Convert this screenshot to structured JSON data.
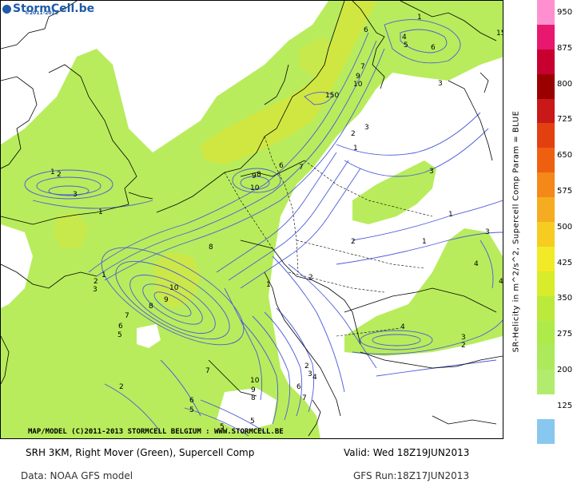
{
  "header": {
    "logo_text": "StormCell.be",
    "logo_sub": "©2011-2013"
  },
  "map": {
    "copyright": "MAP/MODEL (C)2011-2013 STORMCELL BELGIUM : WWW.STORMCELL.BE",
    "shading_color": "#b8ec5c",
    "shading_high_color": "#d8e63a",
    "contour_color": "#4c5cd8",
    "coastline_color": "#000000",
    "contour_labels": [
      "1",
      "2",
      "3",
      "4",
      "5",
      "6",
      "7",
      "8",
      "9",
      "10",
      "15",
      "150"
    ]
  },
  "colorbar": {
    "title": "SR-Helicity in m^2/s^2, Supercell Comp Param = BLUE",
    "levels": [
      "950",
      "875",
      "800",
      "725",
      "650",
      "575",
      "500",
      "425",
      "350",
      "275",
      "200",
      "125"
    ],
    "colors": [
      "#ff90d0",
      "#e8186e",
      "#c80030",
      "#9a0000",
      "#c81818",
      "#e24010",
      "#ee6010",
      "#f48818",
      "#f6ac20",
      "#f6cc22",
      "#f2ea26",
      "#d8ec2c",
      "#bcea3c",
      "#aeea4a",
      "#acea5c",
      "#b2ec6e",
      "#ffffff",
      "#88c8f0"
    ]
  },
  "footer": {
    "product": "SRH 3KM, Right Mover (Green), Supercell Comp",
    "valid": "Valid: Wed 18Z19JUN2013",
    "data_source": "Data: NOAA GFS model",
    "run": "GFS Run:18Z17JUN2013"
  }
}
